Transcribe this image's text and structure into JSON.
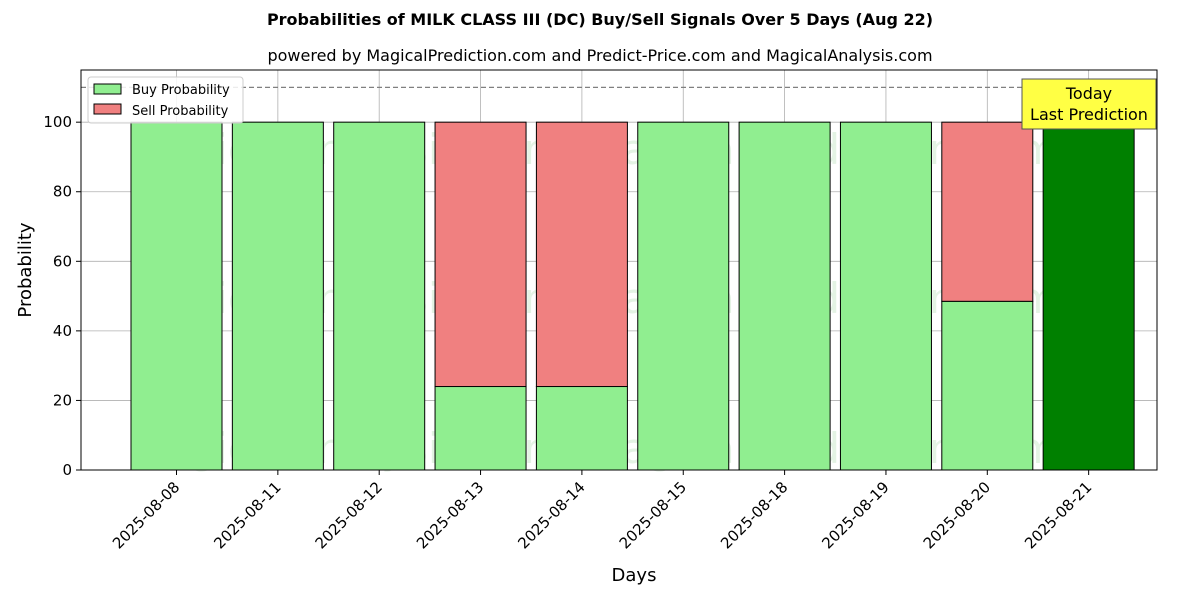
{
  "chart_data": {
    "type": "bar",
    "title": "Probabilities of MILK CLASS III (DC) Buy/Sell Signals Over 5 Days (Aug 22)",
    "subtitle": "powered by MagicalPrediction.com and Predict-Price.com and MagicalAnalysis.com",
    "xlabel": "Days",
    "ylabel": "Probability",
    "ylim": [
      0,
      115
    ],
    "yticks": [
      "0",
      "20",
      "40",
      "60",
      "80",
      "100"
    ],
    "reference_line": 110,
    "grid": true,
    "stacked": true,
    "legend_position": "top-left",
    "categories": [
      "2025-08-08",
      "2025-08-11",
      "2025-08-12",
      "2025-08-13",
      "2025-08-14",
      "2025-08-15",
      "2025-08-18",
      "2025-08-19",
      "2025-08-20",
      "2025-08-21"
    ],
    "series": [
      {
        "name": "Buy Probability",
        "color": "#90ee90",
        "values": [
          100,
          100,
          100,
          24,
          24,
          100,
          100,
          100,
          48.5,
          100
        ]
      },
      {
        "name": "Sell Probability",
        "color": "#f08080",
        "values": [
          0,
          0,
          0,
          76,
          76,
          0,
          0,
          0,
          51.5,
          0
        ]
      }
    ],
    "highlight": {
      "category": "2025-08-21",
      "color": "#008000"
    },
    "annotation": {
      "line1": "Today",
      "line2": "Last Prediction",
      "background": "#ffff44"
    },
    "watermarks": [
      "MagicalAnalysis.com",
      "MagicalPrediction.com"
    ]
  }
}
